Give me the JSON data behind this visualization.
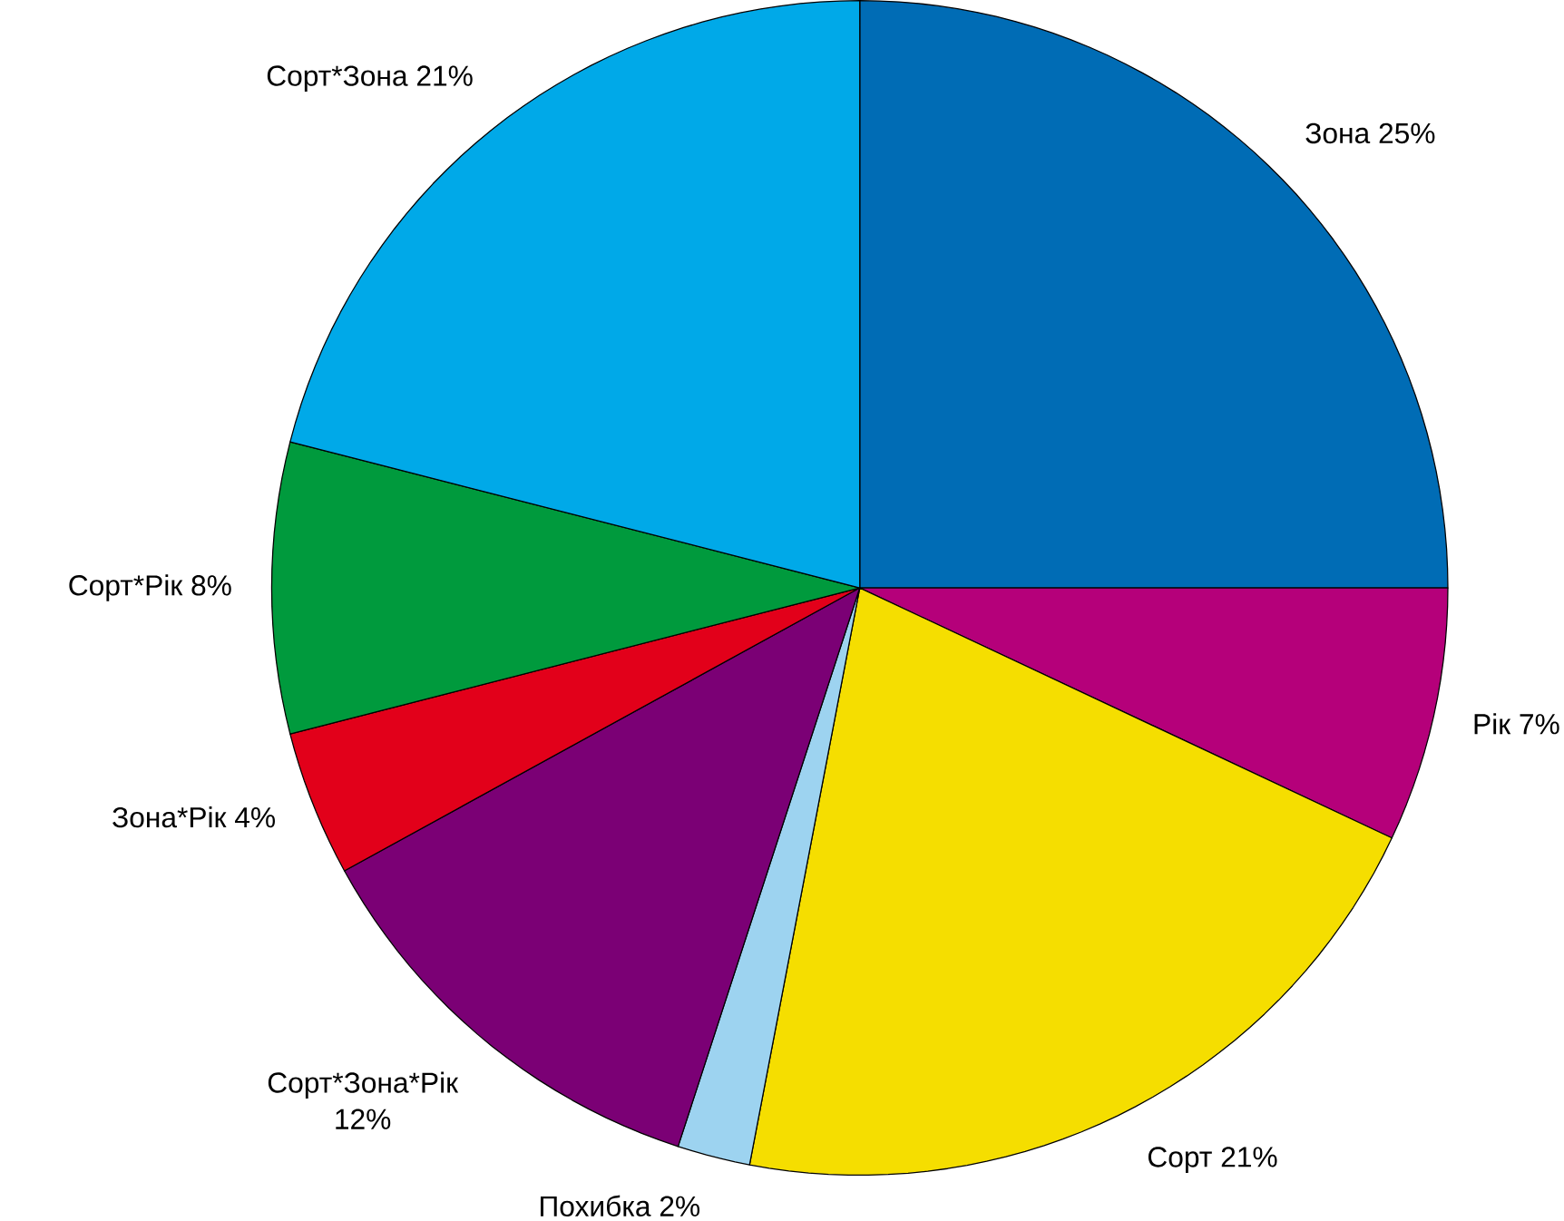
{
  "chart_data": {
    "type": "pie",
    "categories": [
      "Зона",
      "Рік",
      "Сорт",
      "Похибка",
      "Сорт*Зона*Рік",
      "Зона*Рік",
      "Сорт*Рік",
      "Сорт*Зона"
    ],
    "values": [
      25,
      7,
      21,
      2,
      12,
      4,
      8,
      21
    ],
    "value_labels": [
      "25%",
      "7%",
      "21%",
      "2%",
      "12%",
      "4%",
      "8%",
      "21%"
    ],
    "colors": [
      "#006cb5",
      "#b5007a",
      "#f5de00",
      "#9dd3f0",
      "#7b0075",
      "#e2001a",
      "#009a3d",
      "#00a9e8"
    ]
  }
}
